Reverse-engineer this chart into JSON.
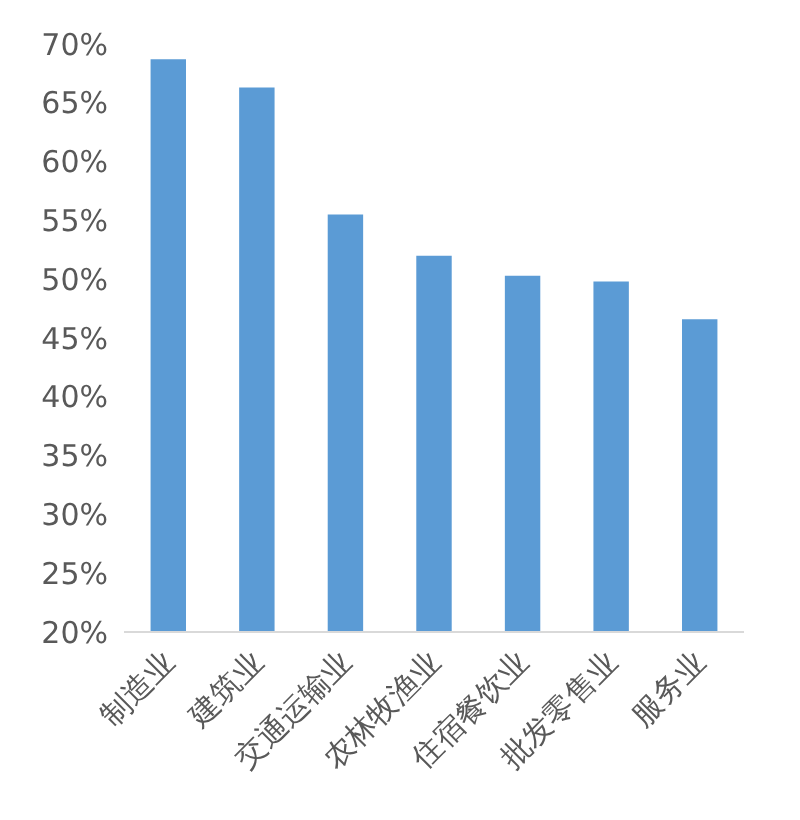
{
  "chart_data": {
    "type": "bar",
    "categories": [
      "制造业",
      "建筑业",
      "交通运输业",
      "农林牧渔业",
      "住宿餐饮业",
      "批发零售业",
      "服务业"
    ],
    "values": [
      68.7,
      66.3,
      55.5,
      52.0,
      50.3,
      49.8,
      46.6
    ],
    "color": "#5b9bd5",
    "ylim": [
      20,
      70
    ],
    "yticks": [
      {
        "value": 20,
        "label": "20%"
      },
      {
        "value": 25,
        "label": "25%"
      },
      {
        "value": 30,
        "label": "30%"
      },
      {
        "value": 35,
        "label": "35%"
      },
      {
        "value": 40,
        "label": "40%"
      },
      {
        "value": 45,
        "label": "45%"
      },
      {
        "value": 50,
        "label": "50%"
      },
      {
        "value": 55,
        "label": "55%"
      },
      {
        "value": 60,
        "label": "60%"
      },
      {
        "value": 65,
        "label": "65%"
      },
      {
        "value": 70,
        "label": "70%"
      }
    ],
    "grid": false,
    "legend": false
  }
}
